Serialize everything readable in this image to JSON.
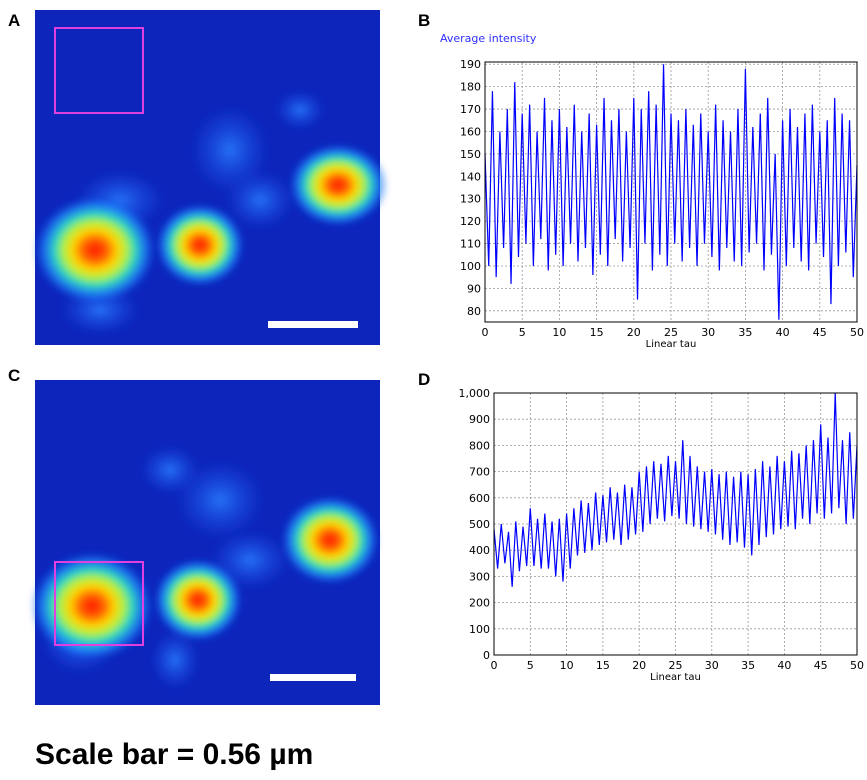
{
  "panel_labels": [
    "A",
    "B",
    "C",
    "D"
  ],
  "caption": "Scale bar = 0.56 µm",
  "chart_data": [
    {
      "type": "line",
      "title": "Average intensity",
      "x_label": "Linear tau",
      "color": "#0000ff",
      "grid": true,
      "xlim": [
        0,
        50
      ],
      "xticks": [
        0,
        5,
        10,
        15,
        20,
        25,
        30,
        35,
        40,
        45,
        50
      ],
      "ylim": [
        75,
        191
      ],
      "yticks": [
        80,
        90,
        100,
        110,
        120,
        130,
        140,
        150,
        160,
        170,
        180,
        190
      ],
      "x": [
        0,
        0.5,
        1,
        1.5,
        2,
        2.5,
        3,
        3.5,
        4,
        4.5,
        5,
        5.5,
        6,
        6.5,
        7,
        7.5,
        8,
        8.5,
        9,
        9.5,
        10,
        10.5,
        11,
        11.5,
        12,
        12.5,
        13,
        13.5,
        14,
        14.5,
        15,
        15.5,
        16,
        16.5,
        17,
        17.5,
        18,
        18.5,
        19,
        19.5,
        20,
        20.5,
        21,
        21.5,
        22,
        22.5,
        23,
        23.5,
        24,
        24.5,
        25,
        25.5,
        26,
        26.5,
        27,
        27.5,
        28,
        28.5,
        29,
        29.5,
        30,
        30.5,
        31,
        31.5,
        32,
        32.5,
        33,
        33.5,
        34,
        34.5,
        35,
        35.5,
        36,
        36.5,
        37,
        37.5,
        38,
        38.5,
        39,
        39.5,
        40,
        40.5,
        41,
        41.5,
        42,
        42.5,
        43,
        43.5,
        44,
        44.5,
        45,
        45.5,
        46,
        46.5,
        47,
        47.5,
        48,
        48.5,
        49,
        49.5,
        50
      ],
      "values": [
        150,
        100,
        178,
        95,
        160,
        108,
        170,
        92,
        182,
        104,
        168,
        110,
        172,
        100,
        160,
        112,
        175,
        98,
        165,
        105,
        170,
        100,
        162,
        110,
        172,
        102,
        160,
        108,
        168,
        96,
        163,
        105,
        175,
        100,
        165,
        112,
        170,
        102,
        160,
        108,
        175,
        85,
        170,
        110,
        178,
        98,
        172,
        105,
        190,
        100,
        168,
        110,
        165,
        102,
        170,
        108,
        163,
        100,
        168,
        110,
        160,
        104,
        172,
        98,
        165,
        108,
        160,
        102,
        170,
        100,
        188,
        106,
        162,
        110,
        168,
        98,
        175,
        105,
        150,
        76,
        165,
        100,
        170,
        108,
        162,
        102,
        168,
        98,
        172,
        110,
        160,
        104,
        165,
        83,
        175,
        100,
        168,
        106,
        165,
        95,
        145
      ]
    },
    {
      "type": "line",
      "x_label": "Linear tau",
      "color": "#0000ff",
      "grid": true,
      "xlim": [
        0,
        50
      ],
      "xticks": [
        0,
        5,
        10,
        15,
        20,
        25,
        30,
        35,
        40,
        45,
        50
      ],
      "ylim": [
        0,
        1000
      ],
      "yticks": [
        0,
        100,
        200,
        300,
        400,
        500,
        600,
        700,
        800,
        900,
        {
          "value": 1000,
          "label": "1,000"
        }
      ],
      "x": [
        0,
        0.5,
        1,
        1.5,
        2,
        2.5,
        3,
        3.5,
        4,
        4.5,
        5,
        5.5,
        6,
        6.5,
        7,
        7.5,
        8,
        8.5,
        9,
        9.5,
        10,
        10.5,
        11,
        11.5,
        12,
        12.5,
        13,
        13.5,
        14,
        14.5,
        15,
        15.5,
        16,
        16.5,
        17,
        17.5,
        18,
        18.5,
        19,
        19.5,
        20,
        20.5,
        21,
        21.5,
        22,
        22.5,
        23,
        23.5,
        24,
        24.5,
        25,
        25.5,
        26,
        26.5,
        27,
        27.5,
        28,
        28.5,
        29,
        29.5,
        30,
        30.5,
        31,
        31.5,
        32,
        32.5,
        33,
        33.5,
        34,
        34.5,
        35,
        35.5,
        36,
        36.5,
        37,
        37.5,
        38,
        38.5,
        39,
        39.5,
        40,
        40.5,
        41,
        41.5,
        42,
        42.5,
        43,
        43.5,
        44,
        44.5,
        45,
        45.5,
        46,
        46.5,
        47,
        47.5,
        48,
        48.5,
        49,
        49.5,
        50
      ],
      "values": [
        480,
        330,
        500,
        350,
        470,
        260,
        510,
        320,
        490,
        340,
        560,
        340,
        520,
        330,
        540,
        330,
        510,
        300,
        520,
        280,
        540,
        330,
        560,
        380,
        590,
        390,
        580,
        400,
        620,
        420,
        610,
        430,
        640,
        440,
        620,
        420,
        650,
        440,
        640,
        460,
        700,
        470,
        720,
        500,
        740,
        520,
        730,
        510,
        760,
        530,
        740,
        520,
        820,
        500,
        760,
        490,
        720,
        480,
        700,
        470,
        710,
        460,
        690,
        440,
        700,
        420,
        680,
        430,
        700,
        410,
        690,
        380,
        710,
        420,
        740,
        450,
        720,
        460,
        760,
        480,
        740,
        490,
        780,
        480,
        770,
        520,
        800,
        500,
        820,
        540,
        880,
        520,
        830,
        540,
        1000,
        560,
        820,
        500,
        850,
        520,
        800
      ]
    }
  ]
}
